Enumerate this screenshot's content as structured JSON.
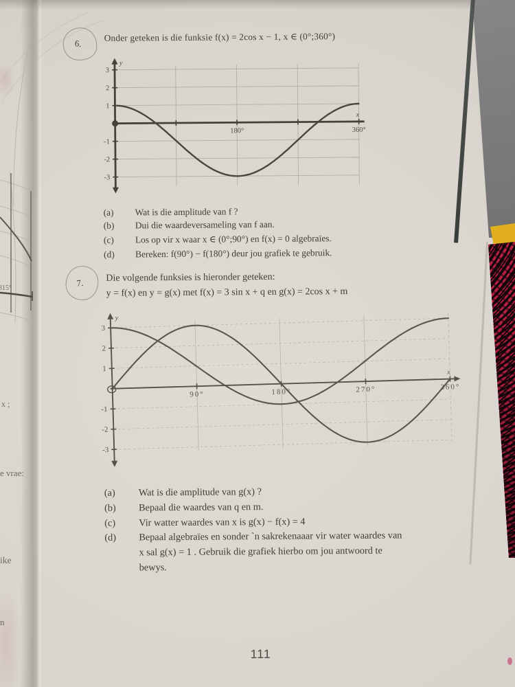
{
  "page_number": "111",
  "question6": {
    "number": "6.",
    "prompt": "Onder geteken is die funksie  f(x) = 2cos x − 1,   x ∈ (0°;360°)",
    "items": [
      {
        "label": "(a)",
        "text": "Wat is die amplitude van f ?"
      },
      {
        "label": "(b)",
        "text": "Dui die waardeversameling van f aan."
      },
      {
        "label": "(c)",
        "text": "Los op vir x waar x ∈ (0°;90°) en f(x) = 0  algebraïes."
      },
      {
        "label": "(d)",
        "text": "Bereken:  f(90°) − f(180°)  deur jou grafiek te gebruik."
      }
    ]
  },
  "question7": {
    "number": "7.",
    "prompt_line1": "Die volgende funksies is hieronder geteken:",
    "prompt_line2": "y = f(x)  en  y = g(x)  met  f(x) = 3 sin x + q  en  g(x) = 2cos x + m",
    "items": [
      {
        "label": "(a)",
        "text": "Wat is die amplitude van g(x) ?"
      },
      {
        "label": "(b)",
        "text": "Bepaal die waardes van q en m."
      },
      {
        "label": "(c)",
        "text": "Vir watter waardes van x is  g(x) − f(x) = 4"
      },
      {
        "label": "(d)",
        "lines": [
          "Bepaal algebraïes en sonder `n sakrekenaaar vir water waardes van",
          "x sal  g(x) = 1 .  Gebruik die grafiek hierbo om jou antwoord te",
          "bewys."
        ]
      }
    ]
  },
  "margin_fragments": {
    "angle_label": "315°",
    "line1": "x  ;",
    "line2": "e vrae:",
    "line3": "ike",
    "line4": "n"
  },
  "chart_data": [
    {
      "type": "line",
      "description": "Grafiek van f(x) = 2cos x − 1 op die interval (0°;360°)",
      "xlabel": "x",
      "ylabel": "y",
      "xlim": [
        0,
        360
      ],
      "ylim": [
        -3,
        3
      ],
      "xticks": [
        90,
        180,
        270,
        360
      ],
      "xtick_labels": {
        "180": "180°",
        "360": "360°"
      },
      "yticks": [
        3,
        2,
        1,
        -1,
        -2,
        -3
      ],
      "grid": true,
      "origin_marker": "filled-dot",
      "series": [
        {
          "name": "f(x) = 2cos x − 1",
          "kind": "cos",
          "amplitude": 2,
          "vertical_shift": -1,
          "period_deg": 360,
          "key_points": [
            [
              0,
              1
            ],
            [
              60,
              0
            ],
            [
              90,
              -1
            ],
            [
              180,
              -3
            ],
            [
              270,
              -1
            ],
            [
              300,
              0
            ],
            [
              360,
              1
            ]
          ]
        }
      ]
    },
    {
      "type": "line",
      "description": "Grafieke van f(x) = 3sin x en g(x) = 2cos x + 1 op die interval (0°;360°)",
      "xlabel": "x",
      "ylabel": "y",
      "xlim": [
        0,
        360
      ],
      "ylim": [
        -3,
        3
      ],
      "xticks": [
        90,
        180,
        270,
        360
      ],
      "xtick_labels": {
        "90": "90°",
        "180": "180°",
        "270": "270°",
        "360": "360°"
      },
      "yticks": [
        3,
        2,
        1,
        -1,
        -2,
        -3
      ],
      "grid": true,
      "origin_marker": "open-circle",
      "series": [
        {
          "name": "f(x) = 3sin x  (q = 0)",
          "kind": "sin",
          "amplitude": 3,
          "vertical_shift": 0,
          "period_deg": 360,
          "key_points": [
            [
              0,
              0
            ],
            [
              90,
              3
            ],
            [
              180,
              0
            ],
            [
              270,
              -3
            ],
            [
              360,
              0
            ]
          ]
        },
        {
          "name": "g(x) = 2cos x + 1  (m = 1)",
          "kind": "cos",
          "amplitude": 2,
          "vertical_shift": 1,
          "period_deg": 360,
          "key_points": [
            [
              0,
              3
            ],
            [
              120,
              0
            ],
            [
              180,
              -1
            ],
            [
              240,
              0
            ],
            [
              360,
              3
            ]
          ]
        }
      ]
    }
  ]
}
